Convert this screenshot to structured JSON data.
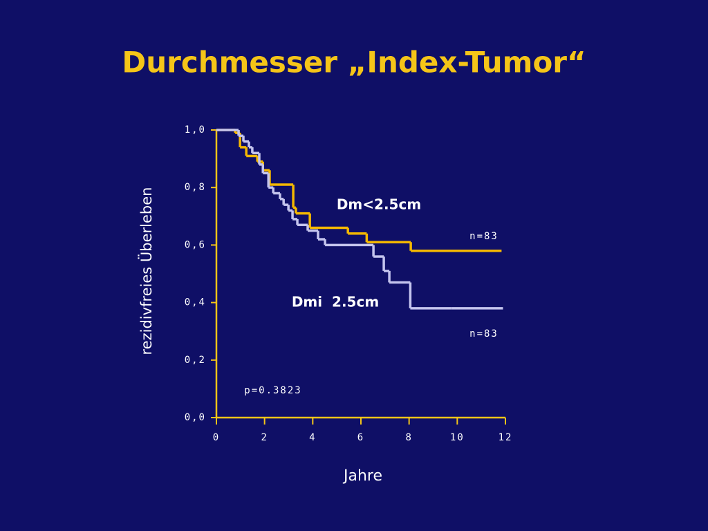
{
  "chart_data": {
    "type": "step",
    "title": "Durchmesser „Index-Tumor“",
    "y_label": "rezidivfreies Überleben",
    "x_label": "Jahre",
    "xlim": [
      0,
      12
    ],
    "ylim": [
      0,
      1.0
    ],
    "xticks": [
      0,
      2,
      4,
      6,
      8,
      10,
      12
    ],
    "yticks": [
      {
        "value": 0.0,
        "label": "0,0"
      },
      {
        "value": 0.2,
        "label": "0,2"
      },
      {
        "value": 0.4,
        "label": "0,4"
      },
      {
        "value": 0.6,
        "label": "0,6"
      },
      {
        "value": 0.8,
        "label": "0,8"
      },
      {
        "value": 1.0,
        "label": "1,0"
      }
    ],
    "axis_color": "#f5c518",
    "series": [
      {
        "name": "Dm<2.5cm",
        "color": "#f5b800",
        "n_label": "n=83",
        "x": [
          0,
          0.78,
          0.98,
          1.24,
          1.7,
          1.93,
          2.21,
          3.19,
          3.3,
          3.88,
          5.46,
          6.24,
          8.07,
          11.84
        ],
        "values": [
          1.0,
          0.99,
          0.94,
          0.91,
          0.89,
          0.86,
          0.81,
          0.73,
          0.71,
          0.66,
          0.64,
          0.61,
          0.58,
          0.58
        ]
      },
      {
        "name": "Dmi  2.5cm",
        "color": "#c4c4ee",
        "n_label": "n=83",
        "x": [
          0,
          0.92,
          1.12,
          1.35,
          1.49,
          1.78,
          1.93,
          2.16,
          2.36,
          2.64,
          2.79,
          2.99,
          3.16,
          3.36,
          3.79,
          4.22,
          4.51,
          6.52,
          6.95,
          7.18,
          8.05,
          9.74,
          11.9
        ],
        "values": [
          1.0,
          0.98,
          0.96,
          0.94,
          0.92,
          0.88,
          0.85,
          0.8,
          0.78,
          0.76,
          0.74,
          0.72,
          0.69,
          0.67,
          0.65,
          0.62,
          0.6,
          0.56,
          0.51,
          0.47,
          0.38,
          0.38,
          0.38
        ]
      }
    ],
    "p_value": "p=0.3823"
  }
}
